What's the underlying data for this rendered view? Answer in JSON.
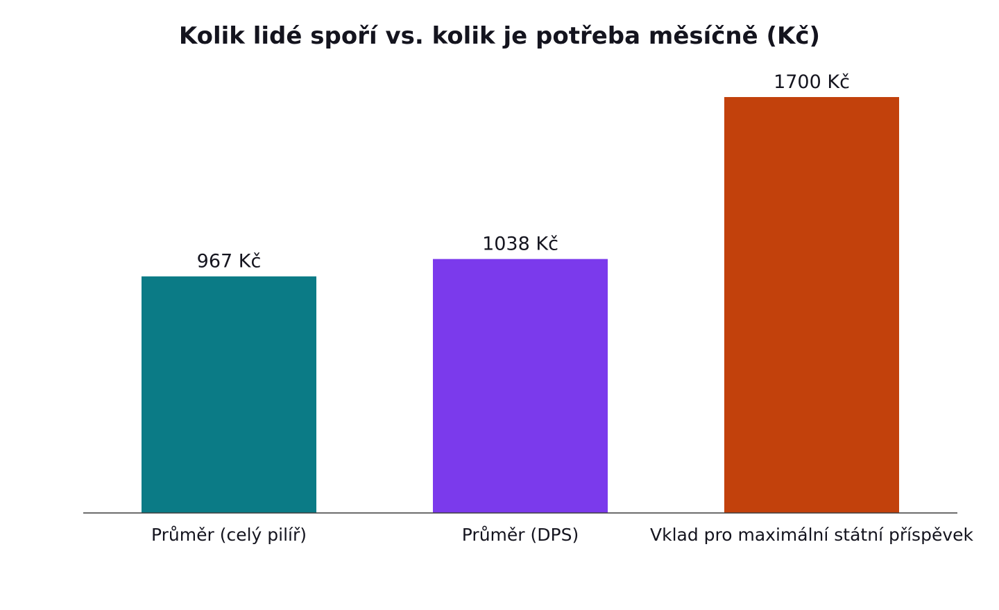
{
  "chart_data": {
    "type": "bar",
    "title": "Kolik lidé spoří vs. kolik je potřeba měsíčně (Kč)",
    "xlabel": "",
    "ylabel": "",
    "categories": [
      "Průměr (celý pilíř)",
      "Průměr (DPS)",
      "Vklad pro maximální státní příspěvek"
    ],
    "values": [
      967,
      1038,
      1700
    ],
    "value_labels": [
      "967 Kč",
      "1038 Kč",
      "1700 Kč"
    ],
    "colors": [
      "#0b7b86",
      "#7b3aec",
      "#c2410c"
    ],
    "ylim": [
      0,
      1785
    ],
    "grid": false,
    "legend": "none"
  }
}
